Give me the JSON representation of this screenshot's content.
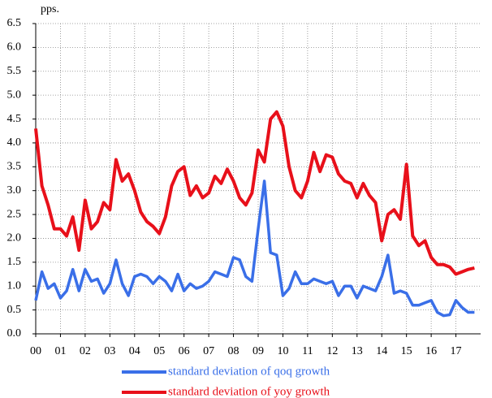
{
  "chart_data": {
    "type": "line",
    "y_axis_label": "pps.",
    "x": [
      0,
      0.25,
      0.5,
      0.75,
      1,
      1.25,
      1.5,
      1.75,
      2,
      2.25,
      2.5,
      2.75,
      3,
      3.25,
      3.5,
      3.75,
      4,
      4.25,
      4.5,
      4.75,
      5,
      5.25,
      5.5,
      5.75,
      6,
      6.25,
      6.5,
      6.75,
      7,
      7.25,
      7.5,
      7.75,
      8,
      8.25,
      8.5,
      8.75,
      9,
      9.25,
      9.5,
      9.75,
      10,
      10.25,
      10.5,
      10.75,
      11,
      11.25,
      11.5,
      11.75,
      12,
      12.25,
      12.5,
      12.75,
      13,
      13.25,
      13.5,
      13.75,
      14,
      14.25,
      14.5,
      14.75,
      15,
      15.25,
      15.5,
      15.75,
      16,
      16.25,
      16.5,
      16.75,
      17,
      17.25,
      17.5,
      17.75
    ],
    "series": [
      {
        "name": "standard deviation of qoq growth",
        "color": "#3a6fe8",
        "values": [
          0.7,
          1.3,
          0.95,
          1.05,
          0.75,
          0.9,
          1.35,
          0.9,
          1.35,
          1.1,
          1.15,
          0.85,
          1.05,
          1.55,
          1.05,
          0.8,
          1.2,
          1.25,
          1.2,
          1.05,
          1.2,
          1.1,
          0.9,
          1.25,
          0.9,
          1.05,
          0.95,
          1.0,
          1.1,
          1.3,
          1.25,
          1.2,
          1.6,
          1.55,
          1.2,
          1.1,
          2.2,
          3.2,
          1.7,
          1.65,
          0.8,
          0.95,
          1.3,
          1.05,
          1.05,
          1.15,
          1.1,
          1.05,
          1.1,
          0.8,
          1.0,
          1.0,
          0.75,
          1.0,
          0.95,
          0.9,
          1.2,
          1.65,
          0.85,
          0.9,
          0.85,
          0.6,
          0.6,
          0.65,
          0.7,
          0.45,
          0.38,
          0.4,
          0.7,
          0.55,
          0.45,
          0.45
        ]
      },
      {
        "name": "standard deviation of yoy growth",
        "color": "#e8101a",
        "values": [
          4.3,
          3.1,
          2.7,
          2.2,
          2.2,
          2.05,
          2.45,
          1.75,
          2.8,
          2.2,
          2.35,
          2.75,
          2.6,
          3.65,
          3.2,
          3.35,
          3.0,
          2.55,
          2.35,
          2.25,
          2.1,
          2.45,
          3.1,
          3.4,
          3.5,
          2.9,
          3.1,
          2.85,
          2.95,
          3.3,
          3.15,
          3.45,
          3.2,
          2.85,
          2.7,
          2.95,
          3.85,
          3.6,
          4.5,
          4.65,
          4.35,
          3.5,
          3.0,
          2.85,
          3.2,
          3.8,
          3.4,
          3.75,
          3.7,
          3.35,
          3.2,
          3.15,
          2.85,
          3.15,
          2.9,
          2.75,
          1.95,
          2.5,
          2.6,
          2.4,
          3.55,
          2.05,
          1.85,
          1.95,
          1.6,
          1.45,
          1.45,
          1.4,
          1.25,
          1.3,
          1.35,
          1.38
        ]
      }
    ],
    "xlim": [
      0,
      18
    ],
    "xticks": [
      {
        "value": 0,
        "label": "00"
      },
      {
        "value": 1,
        "label": "01"
      },
      {
        "value": 2,
        "label": "02"
      },
      {
        "value": 3,
        "label": "03"
      },
      {
        "value": 4,
        "label": "04"
      },
      {
        "value": 5,
        "label": "05"
      },
      {
        "value": 6,
        "label": "06"
      },
      {
        "value": 7,
        "label": "07"
      },
      {
        "value": 8,
        "label": "08"
      },
      {
        "value": 9,
        "label": "09"
      },
      {
        "value": 10,
        "label": "10"
      },
      {
        "value": 11,
        "label": "11"
      },
      {
        "value": 12,
        "label": "12"
      },
      {
        "value": 13,
        "label": "13"
      },
      {
        "value": 14,
        "label": "14"
      },
      {
        "value": 15,
        "label": "15"
      },
      {
        "value": 16,
        "label": "16"
      },
      {
        "value": 17,
        "label": "17"
      }
    ],
    "ylim": [
      0,
      6.5
    ],
    "yticks": [
      {
        "value": 0,
        "label": "0.0"
      },
      0.5,
      {
        "value": 1,
        "label": "1.0"
      },
      1.5,
      {
        "value": 2,
        "label": "2.0"
      },
      2.5,
      {
        "value": 3,
        "label": "3.0"
      },
      3.5,
      {
        "value": 4,
        "label": "4.0"
      },
      4.5,
      {
        "value": 5,
        "label": "5.0"
      },
      5.5,
      {
        "value": 6,
        "label": "6.0"
      },
      6.5
    ],
    "grid": true
  }
}
